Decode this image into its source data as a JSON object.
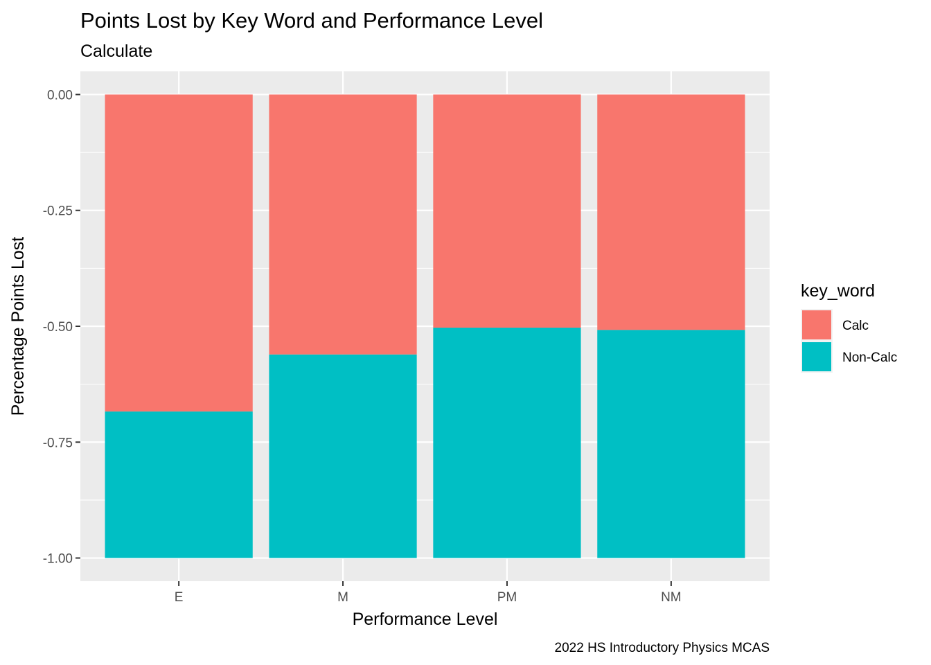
{
  "chart_data": {
    "type": "bar",
    "stacked": true,
    "title": "Points Lost by Key Word and Performance Level",
    "subtitle": "Calculate",
    "xlabel": "Performance Level",
    "ylabel": "Percentage Points Lost",
    "caption": "2022 HS Introductory Physics MCAS",
    "categories": [
      "E",
      "M",
      "PM",
      "NM"
    ],
    "ylim": [
      -1.05,
      0.05
    ],
    "yticks": [
      0,
      -0.25,
      -0.5,
      -0.75,
      -1
    ],
    "ytick_labels": [
      "0.00",
      "-0.25",
      "-0.50",
      "-0.75",
      "-1.00"
    ],
    "grid": true,
    "legend": {
      "title": "key_word",
      "position": "right"
    },
    "series": [
      {
        "name": "Calc",
        "color": "#F8766D",
        "values": [
          -0.684,
          -0.561,
          -0.503,
          -0.508
        ]
      },
      {
        "name": "Non-Calc",
        "color": "#00BFC4",
        "values": [
          -0.316,
          -0.439,
          -0.497,
          -0.492
        ]
      }
    ]
  }
}
